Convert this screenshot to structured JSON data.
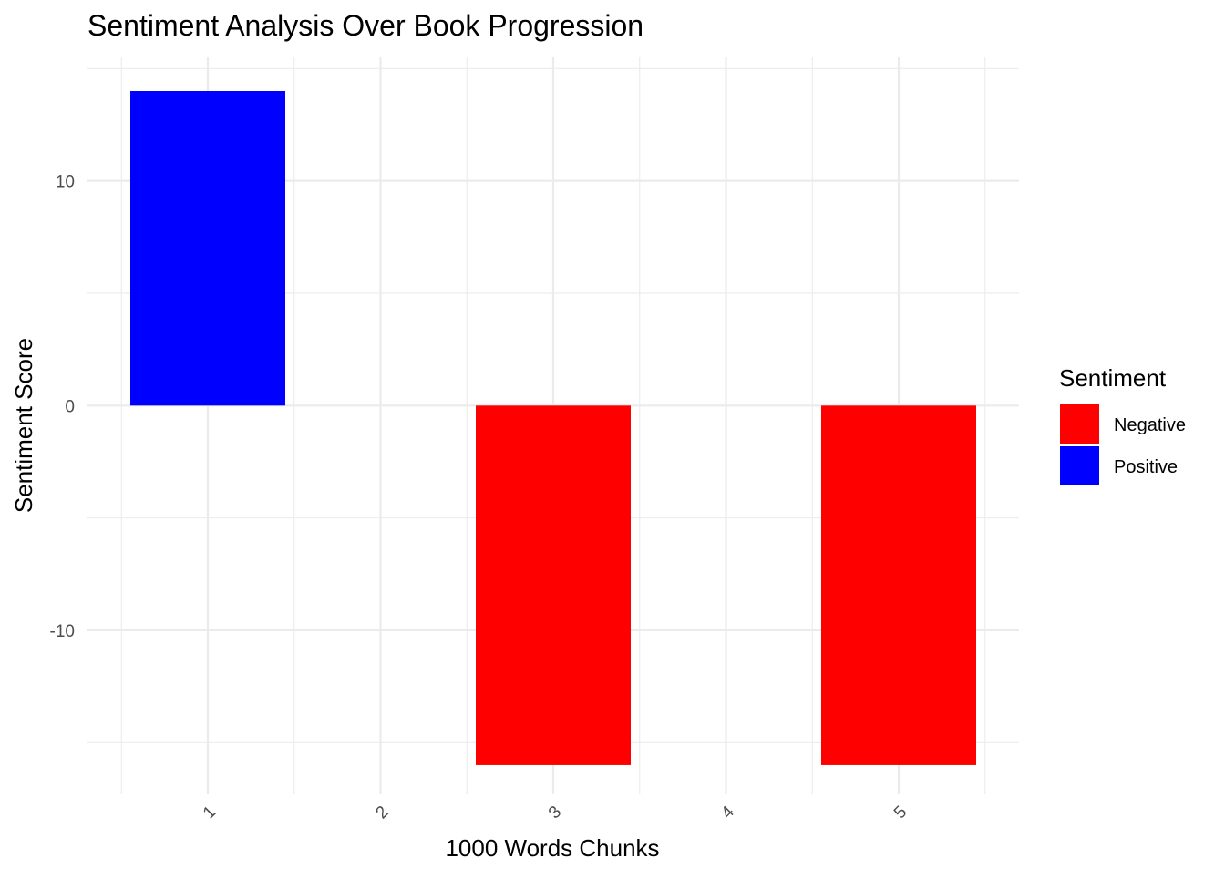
{
  "chart_data": {
    "type": "bar",
    "title": "Sentiment Analysis Over Book Progression",
    "xlabel": "1000 Words Chunks",
    "ylabel": "Sentiment Score",
    "categories": [
      "1",
      "2",
      "3",
      "4",
      "5"
    ],
    "values": [
      14,
      0,
      -16,
      0,
      -16
    ],
    "fill_groups": [
      "Positive",
      null,
      "Negative",
      null,
      "Negative"
    ],
    "ylim": [
      -17.3,
      15.5
    ],
    "y_ticks": [
      -10,
      0,
      10
    ],
    "y_minor_ticks": [
      -15,
      -5,
      5,
      15
    ],
    "x_tick_rotation": 45,
    "grid": true,
    "legend": {
      "title": "Sentiment",
      "position": "right",
      "entries": [
        {
          "label": "Negative",
          "color": "#FF0000"
        },
        {
          "label": "Positive",
          "color": "#0000FF"
        }
      ]
    },
    "colors": {
      "Negative": "#FF0000",
      "Positive": "#0000FF"
    }
  }
}
